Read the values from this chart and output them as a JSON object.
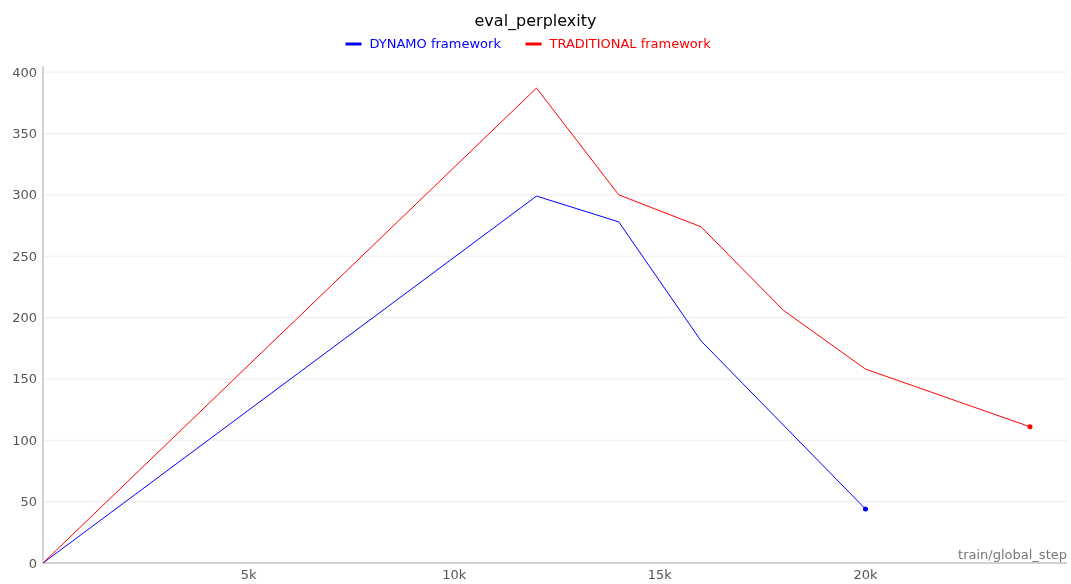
{
  "chart_data": {
    "type": "line",
    "title": "eval_perplexity",
    "xlabel": "train/global_step",
    "xlim": [
      0,
      24900
    ],
    "ylim": [
      0,
      405
    ],
    "xticks": [
      {
        "value": 5000,
        "label": "5k"
      },
      {
        "value": 10000,
        "label": "10k"
      },
      {
        "value": 15000,
        "label": "15k"
      },
      {
        "value": 20000,
        "label": "20k"
      }
    ],
    "yticks": [
      0,
      50,
      100,
      150,
      200,
      250,
      300,
      350,
      400
    ],
    "grid": "y",
    "legend": "top",
    "line_style": "solid",
    "series": [
      {
        "name": "DYNAMO framework",
        "color": "#0000ff",
        "x": [
          0,
          12000,
          14000,
          16000,
          20000
        ],
        "values": [
          0,
          299,
          278,
          181,
          44
        ]
      },
      {
        "name": "TRADITIONAL framework",
        "color": "#ff0000",
        "x": [
          0,
          12000,
          14000,
          16000,
          18000,
          20000,
          24000
        ],
        "values": [
          0,
          387,
          300,
          274,
          206,
          158,
          111
        ]
      }
    ]
  }
}
